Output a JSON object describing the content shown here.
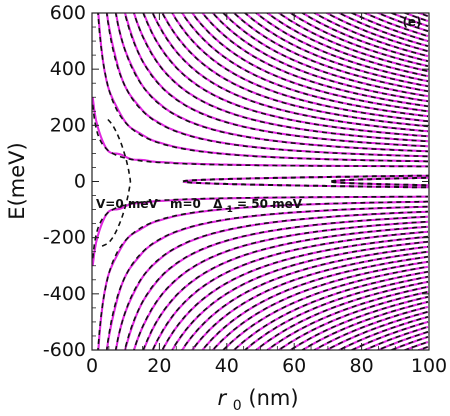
{
  "chart_data": {
    "type": "line",
    "title": "",
    "panel_label": "(e)",
    "xlabel_symbol": "r",
    "xlabel_subscript": "0",
    "xlabel_unit": "(nm)",
    "ylabel": "E(meV)",
    "xlim": [
      0,
      100
    ],
    "ylim": [
      -600,
      600
    ],
    "xticks": [
      0,
      20,
      40,
      60,
      80,
      100
    ],
    "yticks": [
      -600,
      -400,
      -200,
      0,
      200,
      400,
      600
    ],
    "xtick_labels": [
      "0",
      "20",
      "40",
      "60",
      "80",
      "100"
    ],
    "ytick_labels": [
      "-600",
      "-400",
      "-200",
      "0",
      "200",
      "400",
      "600"
    ],
    "annotation_parts": [
      "V=0 meV",
      "m=0",
      "Δ",
      "1",
      " = 50 meV"
    ],
    "grid": false,
    "legend": "none",
    "colors": {
      "solid": "#e028e0",
      "dashed": "#111111",
      "frame": "#222222"
    },
    "series": [
      {
        "style": "solid",
        "description_free": true,
        "conduction_levels_meV_at_r0": {
          "r0": [
            5,
            10,
            15,
            20,
            30,
            40,
            60,
            80,
            100
          ],
          "n1": [
            150,
            118,
            95,
            82,
            66,
            58,
            52,
            51,
            50
          ],
          "n2": [
            330,
            210,
            160,
            130,
            100,
            82,
            66,
            58,
            55
          ],
          "n3": [
            520,
            300,
            225,
            180,
            132,
            106,
            80,
            68,
            61
          ]
        }
      },
      {
        "style": "dashed",
        "conduction_levels_meV_at_r0": {
          "r0": [
            5,
            10,
            15,
            20,
            30,
            40,
            60,
            80,
            100
          ],
          "n1": [
            140,
            112,
            92,
            80,
            65,
            58,
            52,
            51,
            50
          ],
          "n2": [
            320,
            205,
            158,
            128,
            99,
            81,
            66,
            58,
            55
          ],
          "n3": [
            510,
            296,
            222,
            178,
            131,
            105,
            80,
            68,
            61
          ]
        }
      }
    ]
  }
}
